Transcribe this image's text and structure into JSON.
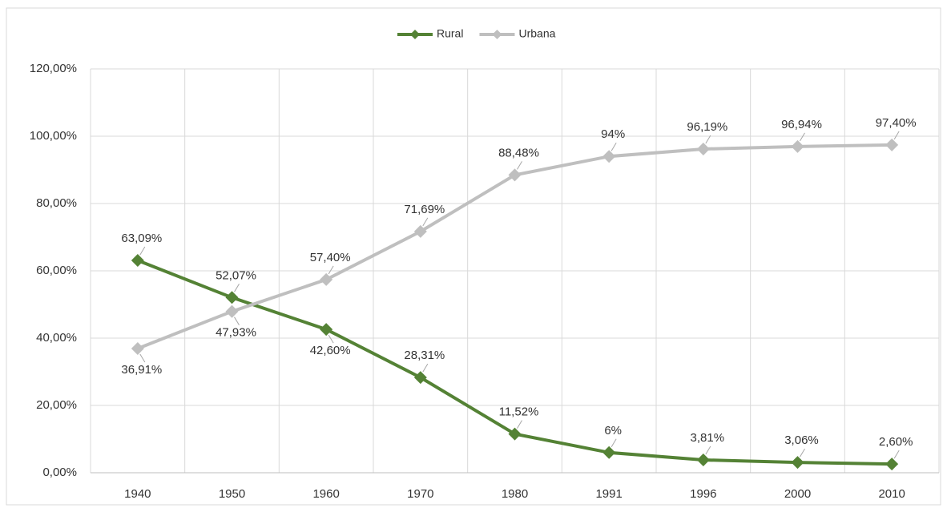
{
  "chart_data": {
    "type": "line",
    "categories": [
      "1940",
      "1950",
      "1960",
      "1970",
      "1980",
      "1991",
      "1996",
      "2000",
      "2010"
    ],
    "series": [
      {
        "name": "Rural",
        "color": "#548235",
        "values": [
          63.09,
          52.07,
          42.6,
          28.31,
          11.52,
          6,
          3.81,
          3.06,
          2.6
        ],
        "value_labels": [
          "63,09%",
          "52,07%",
          "42,60%",
          "28,31%",
          "11,52%",
          "6%",
          "3,81%",
          "3,06%",
          "2,60%"
        ]
      },
      {
        "name": "Urbana",
        "color": "#bfbfbf",
        "values": [
          36.91,
          47.93,
          57.4,
          71.69,
          88.48,
          94,
          96.19,
          96.94,
          97.4
        ],
        "value_labels": [
          "36,91%",
          "47,93%",
          "57,40%",
          "71,69%",
          "88,48%",
          "94%",
          "96,19%",
          "96,94%",
          "97,40%"
        ]
      }
    ],
    "ylim": [
      0,
      120
    ],
    "yticks": [
      {
        "value": 0,
        "label": "0,00%"
      },
      {
        "value": 20,
        "label": "20,00%"
      },
      {
        "value": 40,
        "label": "40,00%"
      },
      {
        "value": 60,
        "label": "60,00%"
      },
      {
        "value": 80,
        "label": "80,00%"
      },
      {
        "value": 100,
        "label": "100,00%"
      },
      {
        "value": 120,
        "label": "120,00%"
      }
    ],
    "grid": true,
    "legend": "top"
  }
}
